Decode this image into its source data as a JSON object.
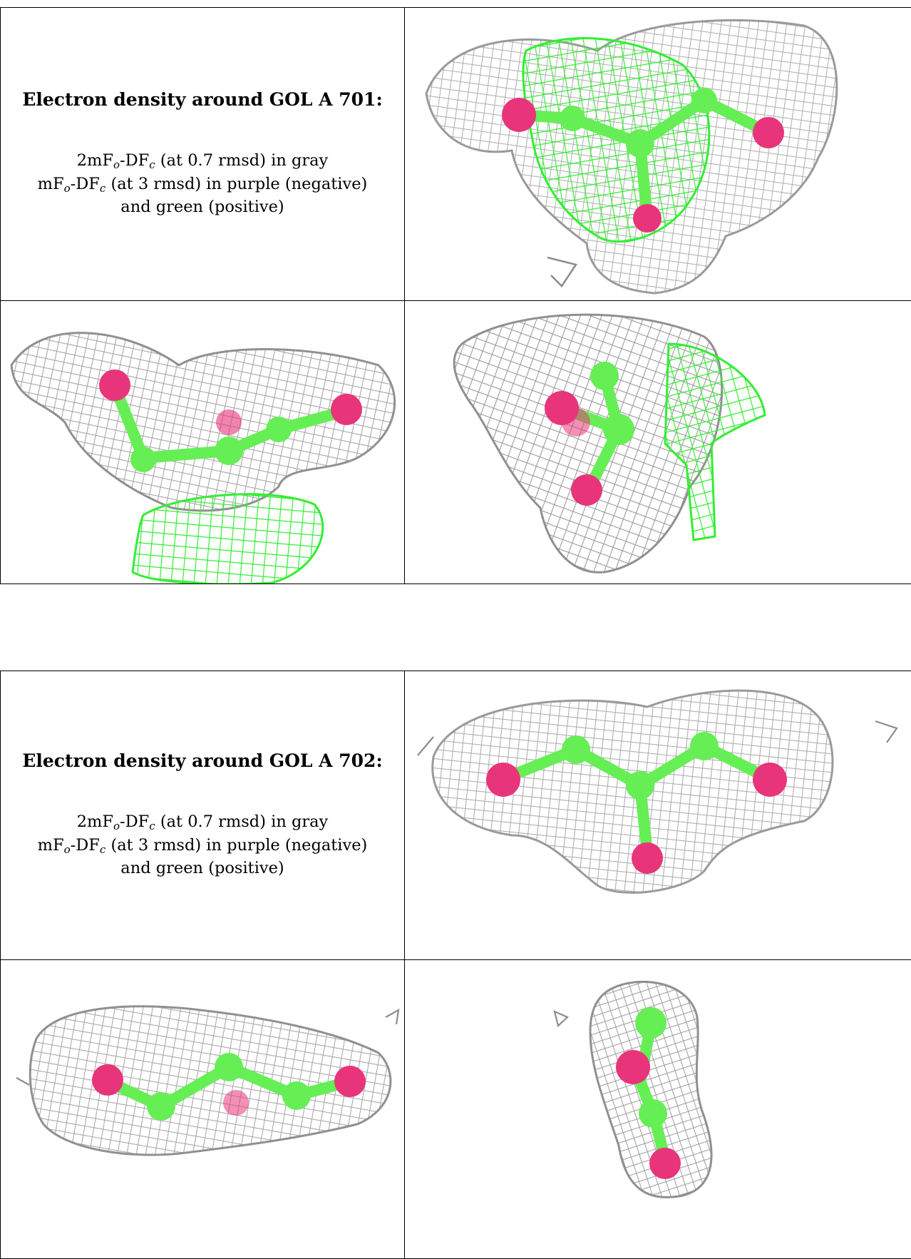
{
  "panels": [
    {
      "heading": "Electron density around GOL A 701:",
      "caption": [
        {
          "a": "2mF",
          "s1": "o",
          "b": "-DF",
          "s2": "c",
          "c": " (at 0.7 rmsd) in gray"
        },
        {
          "a": "mF",
          "s1": "o",
          "b": "-DF",
          "s2": "c",
          "c": " (at 3 rmsd) in purple (negative)"
        },
        {
          "a": "and green (positive)",
          "s1": "",
          "b": "",
          "s2": "",
          "c": ""
        }
      ]
    },
    {
      "heading": "Electron density around GOL A 702:",
      "caption": [
        {
          "a": "2mF",
          "s1": "o",
          "b": "-DF",
          "s2": "c",
          "c": " (at 0.7 rmsd) in gray"
        },
        {
          "a": "mF",
          "s1": "o",
          "b": "-DF",
          "s2": "c",
          "c": " (at 3 rmsd) in purple (negative)"
        },
        {
          "a": "and green (positive)",
          "s1": "",
          "b": "",
          "s2": "",
          "c": ""
        }
      ]
    }
  ],
  "colors": {
    "mesh_gray": "#b4b4b4",
    "mesh_gray_dark": "#8c8c8c",
    "mesh_green": "#33ee33",
    "carbon": "#66ee55",
    "oxygen": "#e8347a"
  },
  "icons": [
    "electron-density-mesh",
    "glycerol-ball-and-stick-model"
  ]
}
